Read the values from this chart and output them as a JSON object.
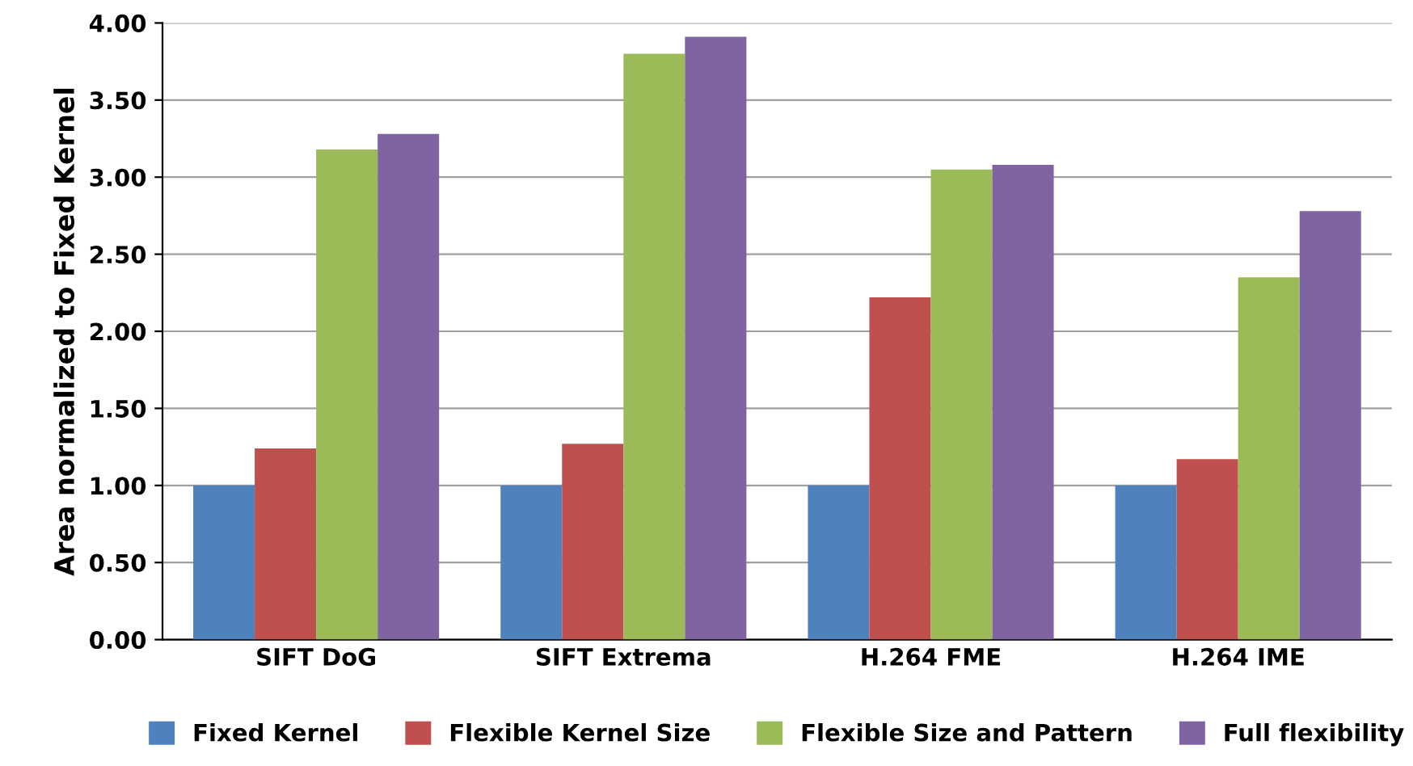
{
  "chart_data": {
    "type": "bar",
    "ylabel": "Area normalized to Fixed Kernel",
    "categories": [
      "SIFT DoG",
      "SIFT Extrema",
      "H.264 FME",
      "H.264 IME"
    ],
    "series": [
      {
        "name": "Fixed Kernel",
        "color": "#4f81bd",
        "values": [
          1.0,
          1.0,
          1.0,
          1.0
        ]
      },
      {
        "name": "Flexible Kernel Size",
        "color": "#c0504d",
        "values": [
          1.24,
          1.27,
          2.22,
          1.17
        ]
      },
      {
        "name": "Flexible Size and Pattern",
        "color": "#9bbb59",
        "values": [
          3.18,
          3.8,
          3.05,
          2.35
        ]
      },
      {
        "name": "Full flexibility",
        "color": "#8064a2",
        "values": [
          3.28,
          3.91,
          3.08,
          2.78
        ]
      }
    ],
    "ylim": [
      0,
      4
    ],
    "yticks": [
      {
        "value": 0,
        "label": "0.00"
      },
      {
        "value": 0.5,
        "label": "0.50"
      },
      {
        "value": 1,
        "label": "1.00"
      },
      {
        "value": 1.5,
        "label": "1.50"
      },
      {
        "value": 2,
        "label": "2.00"
      },
      {
        "value": 2.5,
        "label": "2.50"
      },
      {
        "value": 3,
        "label": "3.00"
      },
      {
        "value": 3.5,
        "label": "3.50"
      },
      {
        "value": 4,
        "label": "4.00"
      }
    ],
    "grid": "y",
    "legend": "bottom"
  }
}
